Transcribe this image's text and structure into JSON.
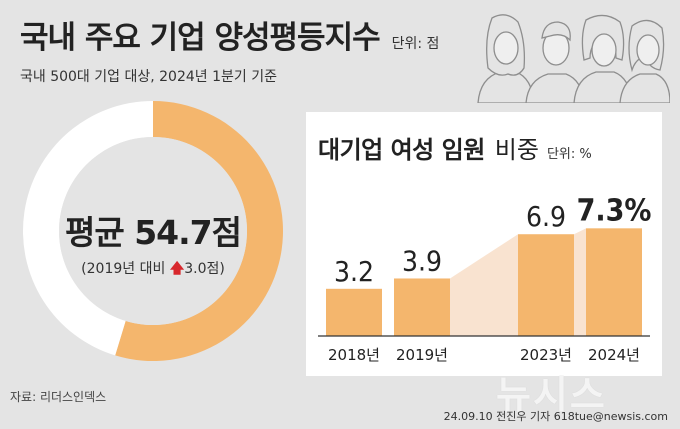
{
  "header": {
    "title": "국내 주요 기업 양성평등지수",
    "unit": "단위: 점",
    "subtitle": "국내 500대 기업 대상, 2024년 1분기 기준"
  },
  "summary": {
    "average": "평균 54.7점",
    "comparison_prefix": "(2019년 대비 ",
    "comparison_arrow": "🡅",
    "comparison_value": "3.0점)"
  },
  "panel": {
    "title_bold": "대기업 여성 임원",
    "title_light": "비중",
    "unit": "단위: %"
  },
  "chart_data": [
    {
      "type": "pie",
      "title": "국내 주요 기업 양성평등지수",
      "unit": "점",
      "max": 100,
      "values": [
        54.7,
        45.3
      ],
      "colors": [
        "#f4b66d",
        "#ffffff"
      ]
    },
    {
      "type": "bar",
      "title": "대기업 여성 임원 비중",
      "unit": "%",
      "categories": [
        "2018년",
        "2019년",
        "2023년",
        "2024년"
      ],
      "values": [
        3.2,
        3.9,
        6.9,
        7.3
      ],
      "value_labels": [
        "3.2",
        "3.9",
        "6.9",
        "7.3%"
      ],
      "ylim": [
        0,
        8
      ],
      "bar_color": "#f4b66d",
      "highlight_index": 3
    }
  ],
  "footer": {
    "source": "자료: 리더스인덱스",
    "logo": "뉴시스",
    "credit": "24.09.10 전진우 기자 618tue@newsis.com"
  }
}
